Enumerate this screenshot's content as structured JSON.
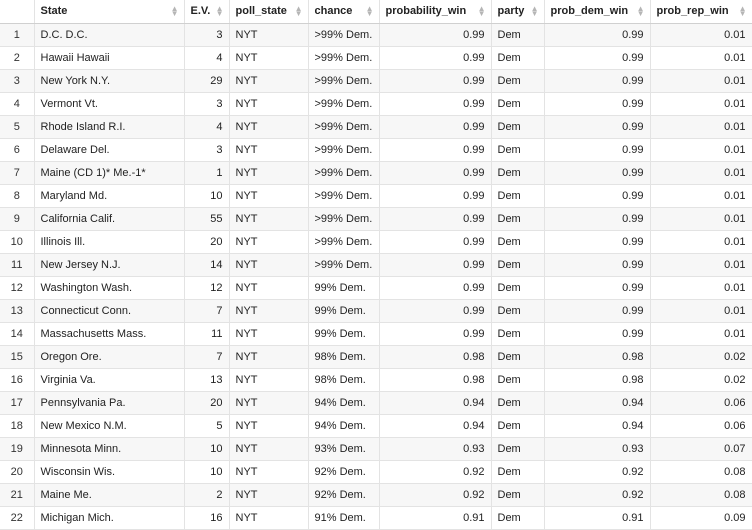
{
  "table": {
    "columns": [
      {
        "label": "",
        "align": "center"
      },
      {
        "label": "State",
        "align": "left"
      },
      {
        "label": "E.V.",
        "align": "right"
      },
      {
        "label": "poll_state",
        "align": "left"
      },
      {
        "label": "chance",
        "align": "left"
      },
      {
        "label": "probability_win",
        "align": "right"
      },
      {
        "label": "party",
        "align": "left"
      },
      {
        "label": "prob_dem_win",
        "align": "right"
      },
      {
        "label": "prob_rep_win",
        "align": "right"
      }
    ],
    "sort_icon": "sort-arrows-icon",
    "rows": [
      [
        "1",
        "D.C. D.C.",
        "3",
        "NYT",
        ">99% Dem.",
        "0.99",
        "Dem",
        "0.99",
        "0.01"
      ],
      [
        "2",
        "Hawaii Hawaii",
        "4",
        "NYT",
        ">99% Dem.",
        "0.99",
        "Dem",
        "0.99",
        "0.01"
      ],
      [
        "3",
        "New York N.Y.",
        "29",
        "NYT",
        ">99% Dem.",
        "0.99",
        "Dem",
        "0.99",
        "0.01"
      ],
      [
        "4",
        "Vermont Vt.",
        "3",
        "NYT",
        ">99% Dem.",
        "0.99",
        "Dem",
        "0.99",
        "0.01"
      ],
      [
        "5",
        "Rhode Island R.I.",
        "4",
        "NYT",
        ">99% Dem.",
        "0.99",
        "Dem",
        "0.99",
        "0.01"
      ],
      [
        "6",
        "Delaware Del.",
        "3",
        "NYT",
        ">99% Dem.",
        "0.99",
        "Dem",
        "0.99",
        "0.01"
      ],
      [
        "7",
        "Maine (CD 1)* Me.-1*",
        "1",
        "NYT",
        ">99% Dem.",
        "0.99",
        "Dem",
        "0.99",
        "0.01"
      ],
      [
        "8",
        "Maryland Md.",
        "10",
        "NYT",
        ">99% Dem.",
        "0.99",
        "Dem",
        "0.99",
        "0.01"
      ],
      [
        "9",
        "California Calif.",
        "55",
        "NYT",
        ">99% Dem.",
        "0.99",
        "Dem",
        "0.99",
        "0.01"
      ],
      [
        "10",
        "Illinois Ill.",
        "20",
        "NYT",
        ">99% Dem.",
        "0.99",
        "Dem",
        "0.99",
        "0.01"
      ],
      [
        "11",
        "New Jersey N.J.",
        "14",
        "NYT",
        ">99% Dem.",
        "0.99",
        "Dem",
        "0.99",
        "0.01"
      ],
      [
        "12",
        "Washington Wash.",
        "12",
        "NYT",
        "99% Dem.",
        "0.99",
        "Dem",
        "0.99",
        "0.01"
      ],
      [
        "13",
        "Connecticut Conn.",
        "7",
        "NYT",
        "99% Dem.",
        "0.99",
        "Dem",
        "0.99",
        "0.01"
      ],
      [
        "14",
        "Massachusetts Mass.",
        "11",
        "NYT",
        "99% Dem.",
        "0.99",
        "Dem",
        "0.99",
        "0.01"
      ],
      [
        "15",
        "Oregon Ore.",
        "7",
        "NYT",
        "98% Dem.",
        "0.98",
        "Dem",
        "0.98",
        "0.02"
      ],
      [
        "16",
        "Virginia Va.",
        "13",
        "NYT",
        "98% Dem.",
        "0.98",
        "Dem",
        "0.98",
        "0.02"
      ],
      [
        "17",
        "Pennsylvania Pa.",
        "20",
        "NYT",
        "94% Dem.",
        "0.94",
        "Dem",
        "0.94",
        "0.06"
      ],
      [
        "18",
        "New Mexico N.M.",
        "5",
        "NYT",
        "94% Dem.",
        "0.94",
        "Dem",
        "0.94",
        "0.06"
      ],
      [
        "19",
        "Minnesota Minn.",
        "10",
        "NYT",
        "93% Dem.",
        "0.93",
        "Dem",
        "0.93",
        "0.07"
      ],
      [
        "20",
        "Wisconsin Wis.",
        "10",
        "NYT",
        "92% Dem.",
        "0.92",
        "Dem",
        "0.92",
        "0.08"
      ],
      [
        "21",
        "Maine Me.",
        "2",
        "NYT",
        "92% Dem.",
        "0.92",
        "Dem",
        "0.92",
        "0.08"
      ],
      [
        "22",
        "Michigan Mich.",
        "16",
        "NYT",
        "91% Dem.",
        "0.91",
        "Dem",
        "0.91",
        "0.09"
      ]
    ]
  }
}
